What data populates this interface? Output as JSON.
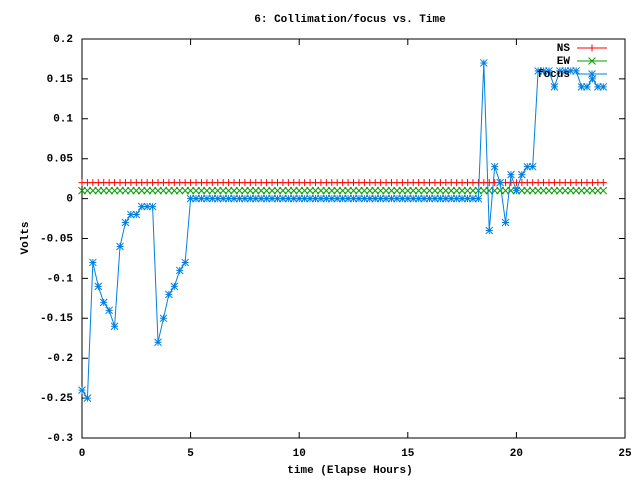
{
  "chart_data": {
    "type": "line",
    "title": "6: Collimation/focus vs. Time",
    "x_label": "time (Elapse Hours)",
    "y_label": "Volts",
    "xlim": [
      0,
      25
    ],
    "xticks": [
      0,
      5,
      10,
      15,
      20,
      25
    ],
    "ylim": [
      -0.3,
      0.2
    ],
    "yticks": [
      -0.3,
      -0.25,
      -0.2,
      -0.15,
      -0.1,
      -0.05,
      0,
      0.05,
      0.1,
      0.15,
      0.2
    ],
    "grid": false,
    "legend": "top-right",
    "x": [
      0,
      0.25,
      0.5,
      0.75,
      1,
      1.25,
      1.5,
      1.75,
      2,
      2.25,
      2.5,
      2.75,
      3,
      3.25,
      3.5,
      3.75,
      4,
      4.25,
      4.5,
      4.75,
      5,
      5.25,
      5.5,
      5.75,
      6,
      6.25,
      6.5,
      6.75,
      7,
      7.25,
      7.5,
      7.75,
      8,
      8.25,
      8.5,
      8.75,
      9,
      9.25,
      9.5,
      9.75,
      10,
      10.25,
      10.5,
      10.75,
      11,
      11.25,
      11.5,
      11.75,
      12,
      12.25,
      12.5,
      12.75,
      13,
      13.25,
      13.5,
      13.75,
      14,
      14.25,
      14.5,
      14.75,
      15,
      15.25,
      15.5,
      15.75,
      16,
      16.25,
      16.5,
      16.75,
      17,
      17.25,
      17.5,
      17.75,
      18,
      18.25,
      18.5,
      18.75,
      19,
      19.25,
      19.5,
      19.75,
      20,
      20.25,
      20.5,
      20.75,
      21,
      21.25,
      21.5,
      21.75,
      22,
      22.25,
      22.5,
      22.75,
      23,
      23.25,
      23.5,
      23.75,
      24
    ],
    "series": [
      {
        "name": "NS",
        "color": "#ff0000",
        "marker": "plus",
        "lines": false,
        "values": [
          0.02,
          0.02,
          0.02,
          0.02,
          0.02,
          0.02,
          0.02,
          0.02,
          0.02,
          0.02,
          0.02,
          0.02,
          0.02,
          0.02,
          0.02,
          0.02,
          0.02,
          0.02,
          0.02,
          0.02,
          0.02,
          0.02,
          0.02,
          0.02,
          0.02,
          0.02,
          0.02,
          0.02,
          0.02,
          0.02,
          0.02,
          0.02,
          0.02,
          0.02,
          0.02,
          0.02,
          0.02,
          0.02,
          0.02,
          0.02,
          0.02,
          0.02,
          0.02,
          0.02,
          0.02,
          0.02,
          0.02,
          0.02,
          0.02,
          0.02,
          0.02,
          0.02,
          0.02,
          0.02,
          0.02,
          0.02,
          0.02,
          0.02,
          0.02,
          0.02,
          0.02,
          0.02,
          0.02,
          0.02,
          0.02,
          0.02,
          0.02,
          0.02,
          0.02,
          0.02,
          0.02,
          0.02,
          0.02,
          0.02,
          0.02,
          0.02,
          0.02,
          0.02,
          0.02,
          0.02,
          0.02,
          0.02,
          0.02,
          0.02,
          0.02,
          0.02,
          0.02,
          0.02,
          0.02,
          0.02,
          0.02,
          0.02,
          0.02,
          0.02,
          0.02,
          0.02,
          0.02
        ]
      },
      {
        "name": "EW",
        "color": "#00a000",
        "marker": "cross",
        "lines": false,
        "values": [
          0.01,
          0.01,
          0.01,
          0.01,
          0.01,
          0.01,
          0.01,
          0.01,
          0.01,
          0.01,
          0.01,
          0.01,
          0.01,
          0.01,
          0.01,
          0.01,
          0.01,
          0.01,
          0.01,
          0.01,
          0.01,
          0.01,
          0.01,
          0.01,
          0.01,
          0.01,
          0.01,
          0.01,
          0.01,
          0.01,
          0.01,
          0.01,
          0.01,
          0.01,
          0.01,
          0.01,
          0.01,
          0.01,
          0.01,
          0.01,
          0.01,
          0.01,
          0.01,
          0.01,
          0.01,
          0.01,
          0.01,
          0.01,
          0.01,
          0.01,
          0.01,
          0.01,
          0.01,
          0.01,
          0.01,
          0.01,
          0.01,
          0.01,
          0.01,
          0.01,
          0.01,
          0.01,
          0.01,
          0.01,
          0.01,
          0.01,
          0.01,
          0.01,
          0.01,
          0.01,
          0.01,
          0.01,
          0.01,
          0.01,
          0.01,
          0.01,
          0.01,
          0.01,
          0.01,
          0.01,
          0.01,
          0.01,
          0.01,
          0.01,
          0.01,
          0.01,
          0.01,
          0.01,
          0.01,
          0.01,
          0.01,
          0.01,
          0.01,
          0.01,
          0.01,
          0.01,
          0.01
        ]
      },
      {
        "name": "focus",
        "color": "#0080e0",
        "marker": "star",
        "lines": true,
        "values": [
          -0.24,
          -0.25,
          -0.08,
          -0.11,
          -0.13,
          -0.14,
          -0.16,
          -0.06,
          -0.03,
          -0.02,
          -0.02,
          -0.01,
          -0.01,
          -0.01,
          -0.18,
          -0.15,
          -0.12,
          -0.11,
          -0.09,
          -0.08,
          0,
          0,
          0,
          0,
          0,
          0,
          0,
          0,
          0,
          0,
          0,
          0,
          0,
          0,
          0,
          0,
          0,
          0,
          0,
          0,
          0,
          0,
          0,
          0,
          0,
          0,
          0,
          0,
          0,
          0,
          0,
          0,
          0,
          0,
          0,
          0,
          0,
          0,
          0,
          0,
          0,
          0,
          0,
          0,
          0,
          0,
          0,
          0,
          0,
          0,
          0,
          0,
          0,
          0,
          0.17,
          -0.04,
          0.04,
          0.02,
          -0.03,
          0.03,
          0.01,
          0.03,
          0.04,
          0.04,
          0.16,
          0.16,
          0.16,
          0.14,
          0.16,
          0.16,
          0.16,
          0.16,
          0.14,
          0.14,
          0.15,
          0.14,
          0.14
        ]
      }
    ]
  }
}
